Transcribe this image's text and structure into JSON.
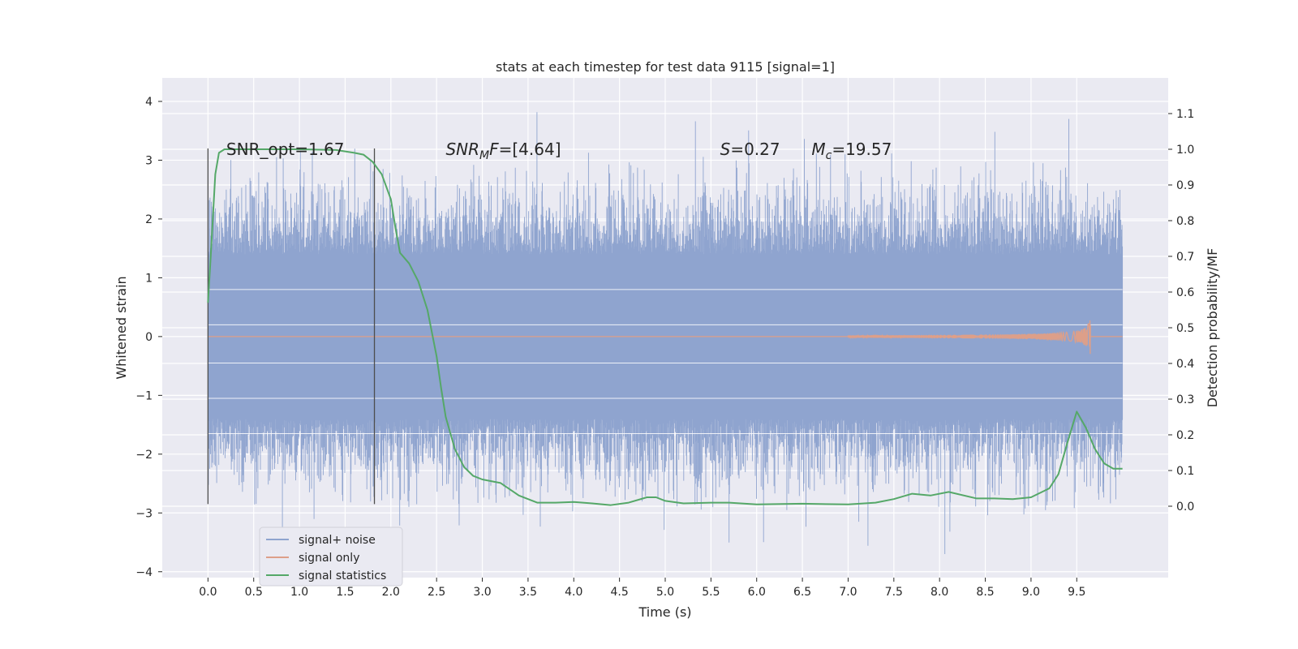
{
  "chart_data": {
    "type": "line",
    "title": "stats at each timestep for test data 9115 [signal=1]",
    "xlabel": "Time (s)",
    "ylabel": "Whitened strain",
    "y2label": "Detection probability/MF",
    "xlim": [
      -0.5,
      10.5
    ],
    "ylim": [
      -4.1,
      4.4
    ],
    "y2lim": [
      -0.2,
      1.2
    ],
    "xticks": [
      0.0,
      0.5,
      1.0,
      1.5,
      2.0,
      2.5,
      3.0,
      3.5,
      4.0,
      4.5,
      5.0,
      5.5,
      6.0,
      6.5,
      7.0,
      7.5,
      8.0,
      8.5,
      9.0,
      9.5
    ],
    "xtick_labels": [
      "0.0",
      "0.5",
      "1.0",
      "1.5",
      "2.0",
      "2.5",
      "3.0",
      "3.5",
      "4.0",
      "4.5",
      "5.0",
      "5.5",
      "6.0",
      "6.5",
      "7.0",
      "7.5",
      "8.0",
      "8.5",
      "9.0",
      "9.5"
    ],
    "yticks": [
      -4,
      -3,
      -2,
      -1,
      0,
      1,
      2,
      3,
      4
    ],
    "ytick_labels": [
      "−4",
      "−3",
      "−2",
      "−1",
      "0",
      "1",
      "2",
      "3",
      "4"
    ],
    "y2ticks": [
      0.0,
      0.1,
      0.2,
      0.3,
      0.4,
      0.5,
      0.6,
      0.7,
      0.8,
      0.9,
      1.0,
      1.1
    ],
    "y2tick_labels": [
      "0.0",
      "0.1",
      "0.2",
      "0.3",
      "0.4",
      "0.5",
      "0.6",
      "0.7",
      "0.8",
      "0.9",
      "1.0",
      "1.1"
    ],
    "grid": true,
    "legend_position": "lower-left",
    "annotations": [
      {
        "text": "SNR_opt=1.67",
        "x": 0.2,
        "y": 3.2
      },
      {
        "text": "SNR_MF=[4.64]",
        "x": 2.6,
        "y": 3.2
      },
      {
        "text": "S=0.27",
        "x": 5.6,
        "y": 3.2
      },
      {
        "text": "M_c=19.57",
        "x": 6.6,
        "y": 3.2
      }
    ],
    "vlines": [
      {
        "x": 0.0,
        "ymin": -2.85,
        "ymax": 3.2
      },
      {
        "x": 1.82,
        "ymin": -2.85,
        "ymax": 3.2
      }
    ],
    "noise": {
      "t_start": 0.0,
      "t_end": 10.0,
      "core_amplitude": 1.4,
      "max_amplitude": 4.05,
      "min_amplitude": -3.7
    },
    "series": [
      {
        "name": "signal+ noise",
        "color": "#8fa4cf",
        "axis": "left"
      },
      {
        "name": "signal only",
        "color": "#dd9f89",
        "axis": "left",
        "chirp_start": 7.0,
        "chirp_peak_time": 9.65,
        "chirp_peak_amplitude": 0.32
      },
      {
        "name": "signal statistics",
        "color": "#55a868",
        "axis": "right",
        "x": [
          0.0,
          0.03,
          0.08,
          0.12,
          0.18,
          0.3,
          0.5,
          1.0,
          1.4,
          1.6,
          1.7,
          1.8,
          1.9,
          2.0,
          2.05,
          2.1,
          2.2,
          2.3,
          2.4,
          2.5,
          2.55,
          2.6,
          2.7,
          2.8,
          2.9,
          3.0,
          3.2,
          3.4,
          3.6,
          3.8,
          4.0,
          4.2,
          4.4,
          4.6,
          4.8,
          4.9,
          5.0,
          5.2,
          5.5,
          5.7,
          6.0,
          6.5,
          7.0,
          7.3,
          7.5,
          7.7,
          7.9,
          8.1,
          8.4,
          8.6,
          8.8,
          9.0,
          9.2,
          9.3,
          9.4,
          9.5,
          9.6,
          9.7,
          9.8,
          9.9,
          10.0
        ],
        "y": [
          0.57,
          0.7,
          0.93,
          0.99,
          1.0,
          1.0,
          1.0,
          1.0,
          0.998,
          0.99,
          0.985,
          0.965,
          0.93,
          0.86,
          0.78,
          0.71,
          0.68,
          0.63,
          0.55,
          0.42,
          0.33,
          0.25,
          0.16,
          0.11,
          0.085,
          0.075,
          0.065,
          0.03,
          0.01,
          0.01,
          0.012,
          0.008,
          0.003,
          0.01,
          0.025,
          0.025,
          0.015,
          0.008,
          0.01,
          0.01,
          0.005,
          0.007,
          0.005,
          0.01,
          0.02,
          0.035,
          0.03,
          0.04,
          0.022,
          0.022,
          0.02,
          0.025,
          0.05,
          0.09,
          0.18,
          0.265,
          0.22,
          0.16,
          0.12,
          0.105,
          0.105
        ]
      }
    ]
  }
}
